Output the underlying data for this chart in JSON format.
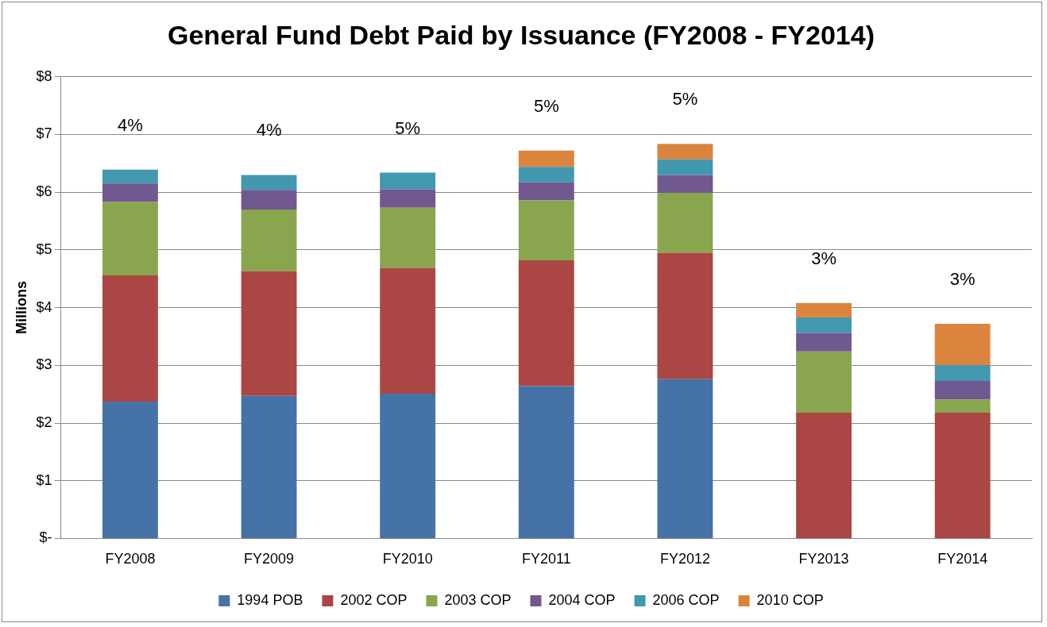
{
  "chart_data": {
    "type": "bar",
    "stacked": true,
    "title": "General Fund Debt Paid by Issuance (FY2008 - FY2014)",
    "ylabel": "Millions",
    "categories": [
      "FY2008",
      "FY2009",
      "FY2010",
      "FY2011",
      "FY2012",
      "FY2013",
      "FY2014"
    ],
    "series": [
      {
        "name": "1994 POB",
        "color": "#4572a7",
        "values": [
          2.37,
          2.47,
          2.51,
          2.64,
          2.76,
          0,
          0
        ]
      },
      {
        "name": "2002 COP",
        "color": "#aa4643",
        "values": [
          2.19,
          2.16,
          2.18,
          2.18,
          2.19,
          2.18,
          2.18
        ]
      },
      {
        "name": "2003 COP",
        "color": "#89a54e",
        "values": [
          1.27,
          1.07,
          1.04,
          1.04,
          1.04,
          1.06,
          0.23
        ]
      },
      {
        "name": "2004 COP",
        "color": "#71588f",
        "values": [
          0.32,
          0.34,
          0.32,
          0.31,
          0.31,
          0.32,
          0.32
        ]
      },
      {
        "name": "2006 COP",
        "color": "#4198af",
        "values": [
          0.24,
          0.26,
          0.29,
          0.27,
          0.27,
          0.27,
          0.27
        ]
      },
      {
        "name": "2010 COP",
        "color": "#db843d",
        "values": [
          0,
          0,
          0,
          0.28,
          0.27,
          0.25,
          0.72
        ]
      }
    ],
    "ylim": [
      0,
      8
    ],
    "yticks": [
      {
        "value": 0,
        "label": "$-"
      },
      {
        "value": 1,
        "label": "$1"
      },
      {
        "value": 2,
        "label": "$2"
      },
      {
        "value": 3,
        "label": "$3"
      },
      {
        "value": 4,
        "label": "$4"
      },
      {
        "value": 5,
        "label": "$5"
      },
      {
        "value": 6,
        "label": "$6"
      },
      {
        "value": 7,
        "label": "$7"
      },
      {
        "value": 8,
        "label": "$8"
      }
    ],
    "grid": "y",
    "legend": "bottom",
    "annotations": [
      "4%",
      "4%",
      "5%",
      "5%",
      "5%",
      "3%",
      "3%"
    ]
  }
}
